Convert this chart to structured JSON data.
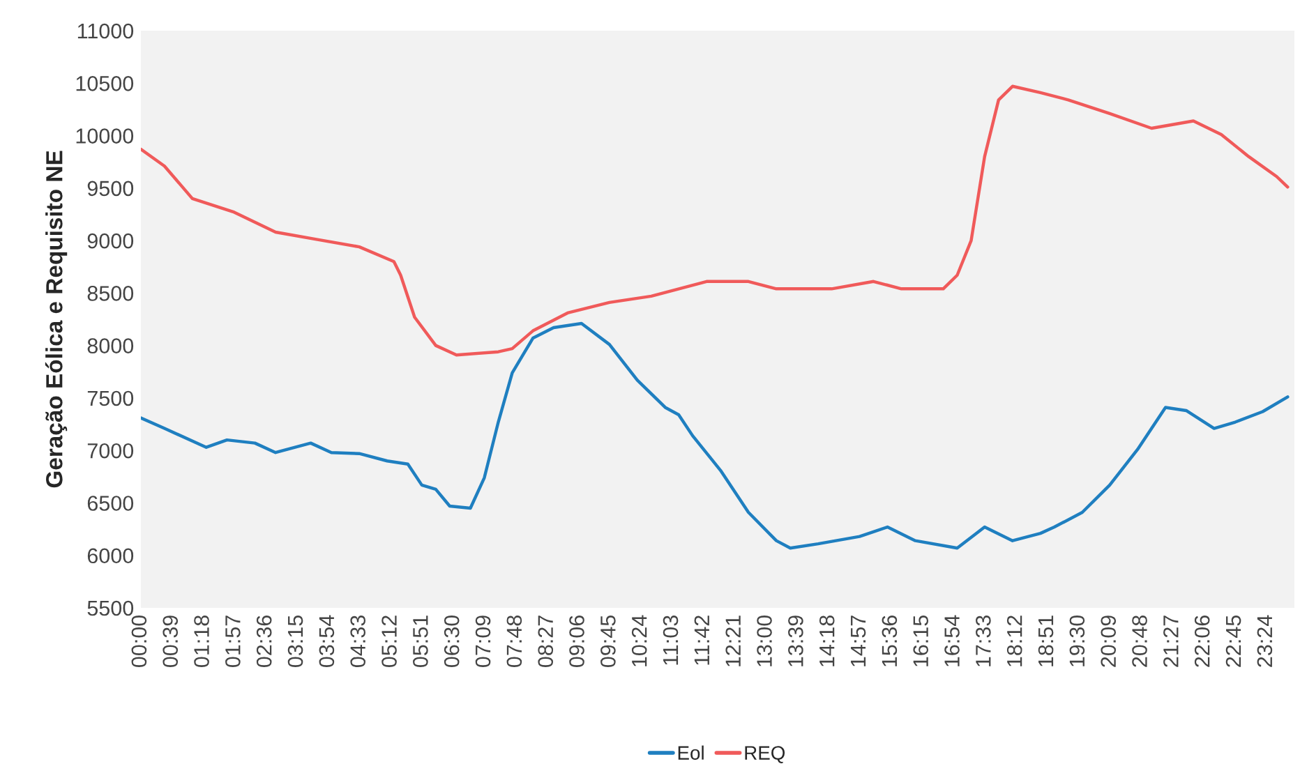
{
  "chart_data": {
    "type": "line",
    "ylabel": "Geração Eólica e Requisito NE",
    "xlim": [
      0,
      23.98
    ],
    "ylim": [
      5500,
      11000
    ],
    "yticks": [
      5500,
      6000,
      6500,
      7000,
      7500,
      8000,
      8500,
      9000,
      9500,
      10000,
      10500,
      11000
    ],
    "xticks": [
      {
        "value": 0,
        "label": "00:00"
      },
      {
        "value": 0.65,
        "label": "00:39"
      },
      {
        "value": 1.3,
        "label": "01:18"
      },
      {
        "value": 1.95,
        "label": "01:57"
      },
      {
        "value": 2.6,
        "label": "02:36"
      },
      {
        "value": 3.25,
        "label": "03:15"
      },
      {
        "value": 3.9,
        "label": "03:54"
      },
      {
        "value": 4.55,
        "label": "04:33"
      },
      {
        "value": 5.2,
        "label": "05:12"
      },
      {
        "value": 5.85,
        "label": "05:51"
      },
      {
        "value": 6.5,
        "label": "06:30"
      },
      {
        "value": 7.15,
        "label": "07:09"
      },
      {
        "value": 7.8,
        "label": "07:48"
      },
      {
        "value": 8.45,
        "label": "08:27"
      },
      {
        "value": 9.1,
        "label": "09:06"
      },
      {
        "value": 9.75,
        "label": "09:45"
      },
      {
        "value": 10.4,
        "label": "10:24"
      },
      {
        "value": 11.05,
        "label": "11:03"
      },
      {
        "value": 11.7,
        "label": "11:42"
      },
      {
        "value": 12.35,
        "label": "12:21"
      },
      {
        "value": 13,
        "label": "13:00"
      },
      {
        "value": 13.65,
        "label": "13:39"
      },
      {
        "value": 14.3,
        "label": "14:18"
      },
      {
        "value": 14.95,
        "label": "14:57"
      },
      {
        "value": 15.6,
        "label": "15:36"
      },
      {
        "value": 16.25,
        "label": "16:15"
      },
      {
        "value": 16.9,
        "label": "16:54"
      },
      {
        "value": 17.55,
        "label": "17:33"
      },
      {
        "value": 18.2,
        "label": "18:12"
      },
      {
        "value": 18.85,
        "label": "18:51"
      },
      {
        "value": 19.5,
        "label": "19:30"
      },
      {
        "value": 20.15,
        "label": "20:09"
      },
      {
        "value": 20.8,
        "label": "20:48"
      },
      {
        "value": 21.45,
        "label": "21:27"
      },
      {
        "value": 22.1,
        "label": "22:06"
      },
      {
        "value": 22.75,
        "label": "22:45"
      },
      {
        "value": 23.4,
        "label": "23:24"
      }
    ],
    "grid": false,
    "legend": "bottom",
    "series": [
      {
        "name": "Eol",
        "color": "#1f7fc0",
        "x": [
          0,
          0.49,
          1.36,
          1.79,
          2.37,
          2.8,
          3.53,
          3.96,
          4.54,
          5.12,
          5.55,
          5.84,
          6.13,
          6.42,
          6.85,
          7.14,
          7.43,
          7.72,
          8.15,
          8.58,
          9.16,
          9.74,
          10.32,
          10.9,
          11.18,
          11.47,
          12.05,
          12.63,
          13.21,
          13.5,
          14.08,
          14.94,
          15.52,
          16.1,
          16.97,
          17.54,
          18.12,
          18.7,
          18.99,
          19.57,
          20.14,
          20.72,
          21.3,
          21.73,
          22.31,
          22.75,
          23.32,
          23.84
        ],
        "values": [
          7310,
          7210,
          7030,
          7100,
          7070,
          6980,
          7070,
          6980,
          6970,
          6900,
          6870,
          6670,
          6630,
          6470,
          6450,
          6740,
          7270,
          7740,
          8070,
          8170,
          8210,
          8010,
          7670,
          7410,
          7340,
          7140,
          6810,
          6410,
          6140,
          6070,
          6110,
          6180,
          6270,
          6140,
          6070,
          6270,
          6140,
          6210,
          6270,
          6410,
          6670,
          7010,
          7410,
          7380,
          7210,
          7270,
          7370,
          7510
        ]
      },
      {
        "name": "REQ",
        "color": "#f05a5a",
        "x": [
          0,
          0.49,
          1.07,
          1.94,
          2.8,
          3.67,
          4.54,
          5.26,
          5.4,
          5.69,
          6.13,
          6.56,
          7.43,
          7.72,
          8.15,
          8.87,
          9.74,
          10.61,
          11.76,
          12.63,
          13.21,
          14.36,
          15.23,
          15.81,
          16.68,
          16.97,
          17.26,
          17.54,
          17.83,
          18.12,
          18.7,
          19.28,
          20.14,
          21.01,
          21.88,
          22.46,
          23.03,
          23.61,
          23.84
        ],
        "values": [
          9870,
          9710,
          9400,
          9270,
          9080,
          9010,
          8940,
          8800,
          8670,
          8270,
          8000,
          7910,
          7940,
          7970,
          8140,
          8310,
          8410,
          8470,
          8610,
          8610,
          8540,
          8540,
          8610,
          8540,
          8540,
          8670,
          9000,
          9800,
          10340,
          10470,
          10410,
          10340,
          10210,
          10070,
          10140,
          10010,
          9800,
          9610,
          9510
        ]
      }
    ]
  }
}
